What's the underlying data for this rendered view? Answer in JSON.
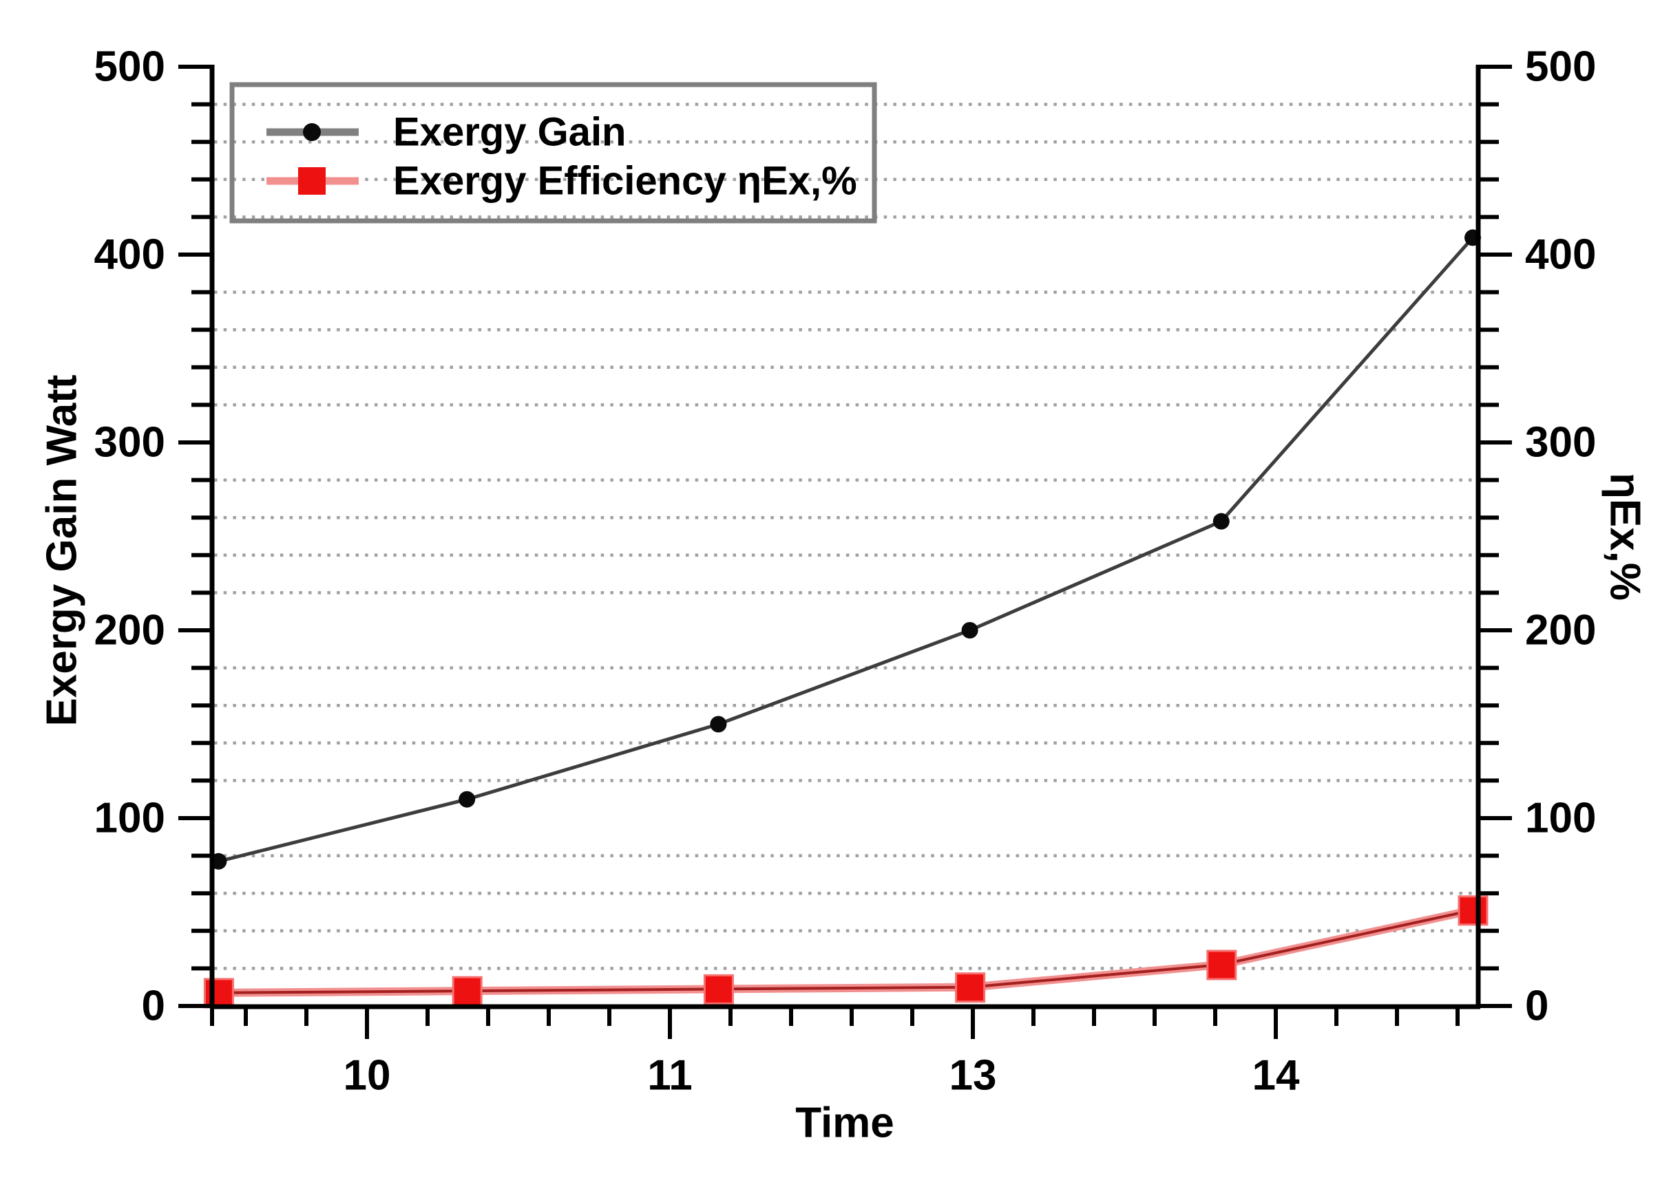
{
  "figure": {
    "background_color": "#ffffff",
    "text_color": "#000000"
  },
  "chart_data": {
    "type": "line",
    "title": "",
    "x_axis": {
      "label": "Time",
      "tick_labels": [
        "10",
        "11",
        "13",
        "14"
      ],
      "minor_divisions_per_major": 5,
      "range_tick_units": [
        -0.518,
        3.675
      ]
    },
    "y_axis_left": {
      "label": "Exergy Gain Watt",
      "min": 0,
      "max": 500,
      "major_step": 100,
      "minor_step": 20,
      "tick_labels": [
        "0",
        "100",
        "200",
        "300",
        "400",
        "500"
      ]
    },
    "y_axis_right": {
      "label": "ηEx,%",
      "min": 0,
      "max": 500,
      "major_step": 100,
      "minor_step": 20,
      "tick_labels": [
        "0",
        "100",
        "200",
        "300",
        "400",
        "500"
      ]
    },
    "grid": {
      "horizontal_dotted_minor": true,
      "skip_major_levels": true,
      "color": "#a0a0a0"
    },
    "series": [
      {
        "name": "Exergy Gain",
        "marker": "circle",
        "marker_color": "#0a0a0a",
        "line_color": "#3d3d3d",
        "legend_line_color": "#808080",
        "x_tick_units": [
          -0.49,
          0.33,
          1.16,
          1.99,
          2.82,
          3.65
        ],
        "x_as_labeled": [
          9.5,
          10.3,
          11.2,
          13.0,
          13.8,
          14.65
        ],
        "values": [
          77,
          110,
          150,
          200,
          258,
          409
        ]
      },
      {
        "name": "Exergy Efficiency ηEx,%",
        "marker": "square",
        "marker_color": "#ed1111",
        "line_color": "#a42020",
        "line_halo_color": "#f29090",
        "x_tick_units": [
          -0.49,
          0.33,
          1.16,
          1.99,
          2.82,
          3.65
        ],
        "x_as_labeled": [
          9.5,
          10.3,
          11.2,
          13.0,
          13.8,
          14.65
        ],
        "values": [
          7,
          8,
          9,
          10,
          22,
          51
        ]
      }
    ],
    "legend": {
      "position": "top-left",
      "border_color": "#7f7f7f",
      "entries": [
        "Exergy Gain",
        "Exergy Efficiency ηEx,%"
      ]
    }
  }
}
